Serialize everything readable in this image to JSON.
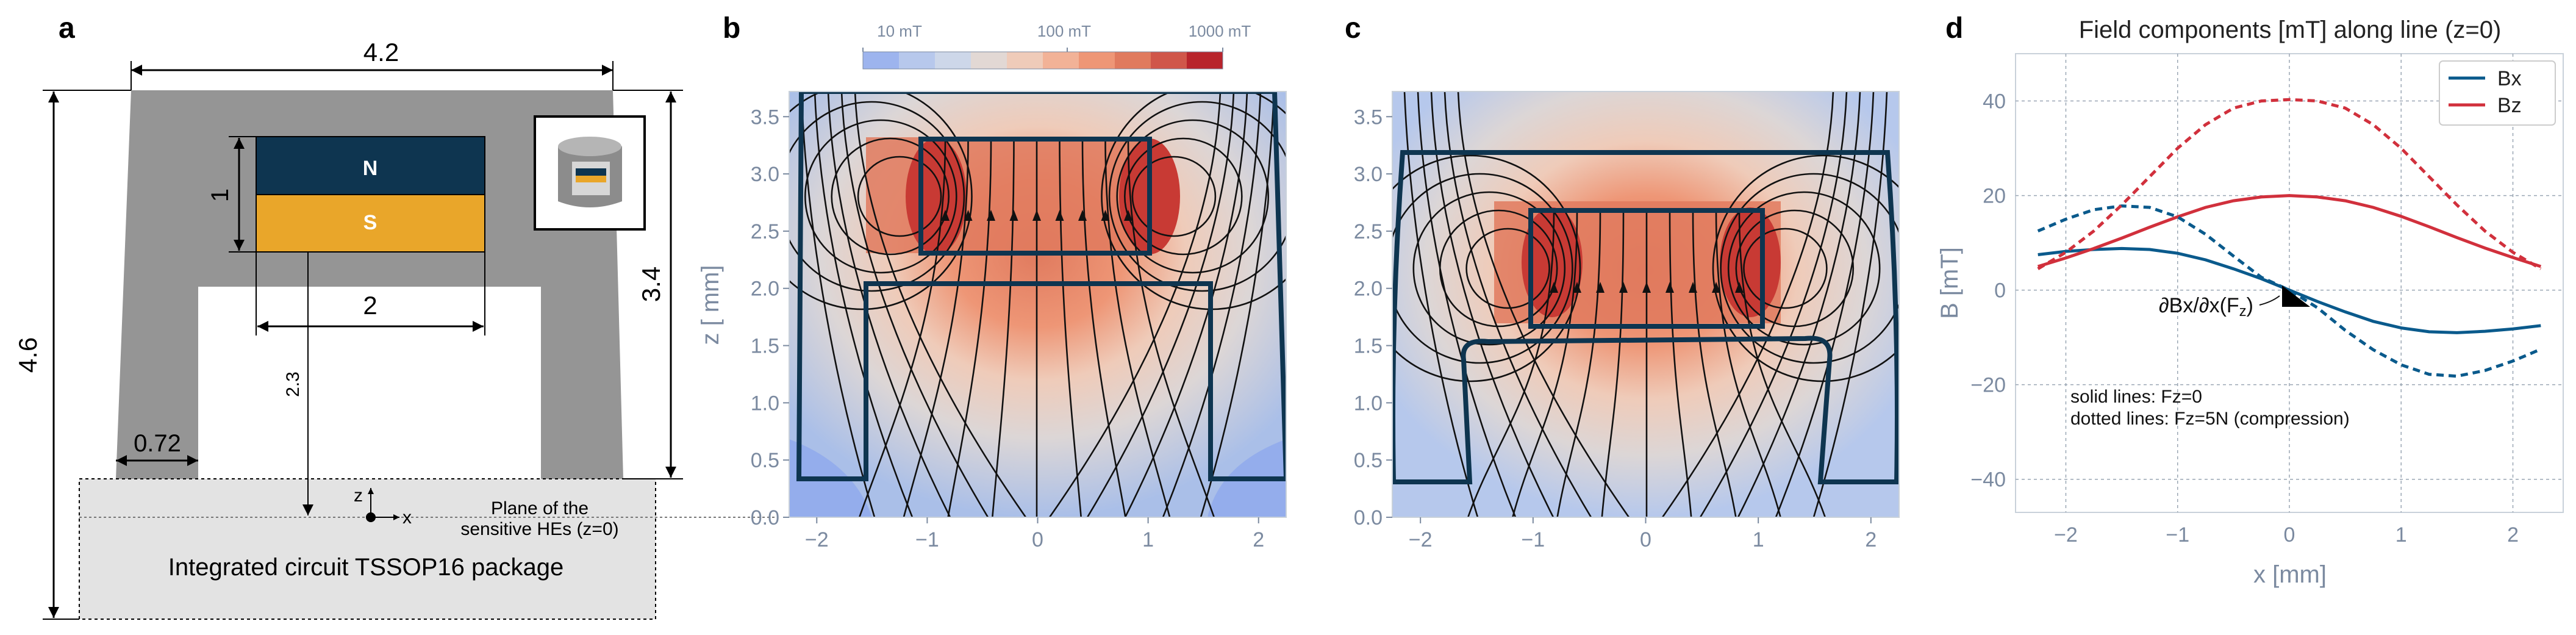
{
  "panels": {
    "a": "a",
    "b": "b",
    "c": "c",
    "d": "d"
  },
  "schematic": {
    "dim_width": "4.2",
    "dim_height": "4.6",
    "dim_right": "3.4",
    "dim_magnet_h": "1",
    "dim_magnet_w": "2",
    "dim_gap": "2.3",
    "dim_leg": "0.72",
    "magnet_n": "N",
    "magnet_s": "S",
    "axis_z": "z",
    "axis_x": "x",
    "plane_line1": "Plane of the",
    "plane_line2": "sensitive HEs (z=0)",
    "package_label": "Integrated circuit TSSOP16 package",
    "colors": {
      "body": "#959595",
      "north": "#0e3550",
      "south": "#e9a62a",
      "package": "#e3e3e3"
    }
  },
  "colorbar": {
    "ticks": [
      "10 mT",
      "100 mT",
      "1000 mT"
    ],
    "colors": [
      "#9db4ee",
      "#b7c8ec",
      "#cdd7e9",
      "#e2d8d4",
      "#efcbb9",
      "#f2b297",
      "#ee9676",
      "#e07a5e",
      "#d0564a",
      "#b8242c"
    ]
  },
  "field_maps": {
    "ylabel": "z [ mm]",
    "x_ticks": [
      "−2",
      "−1",
      "0",
      "1",
      "2"
    ],
    "y_ticks": [
      "0.0",
      "0.5",
      "1.0",
      "1.5",
      "2.0",
      "2.5",
      "3.0",
      "3.5"
    ]
  },
  "chart_data": {
    "type": "line",
    "title": "Field components [mT] along line (z=0)",
    "xlabel": "x [mm]",
    "ylabel": "B [mT]",
    "xlim": [
      -2.45,
      2.45
    ],
    "ylim": [
      -47,
      50
    ],
    "x_ticks": [
      "−2",
      "−1",
      "0",
      "1",
      "2"
    ],
    "y_ticks": [
      "−40",
      "−20",
      "0",
      "20",
      "40"
    ],
    "grid": true,
    "legend_position": "top-right",
    "legend": [
      "Bx",
      "Bz"
    ],
    "colors": {
      "Bx": "#0a5a8c",
      "Bz": "#d1303c"
    },
    "x": [
      -2.25,
      -2.0,
      -1.75,
      -1.5,
      -1.25,
      -1.0,
      -0.75,
      -0.5,
      -0.25,
      0.0,
      0.25,
      0.5,
      0.75,
      1.0,
      1.25,
      1.5,
      1.75,
      2.0,
      2.25
    ],
    "series": [
      {
        "name": "Bx",
        "style": "solid",
        "values": [
          7.5,
          8.2,
          8.6,
          8.8,
          8.6,
          7.8,
          6.4,
          4.5,
          2.4,
          0.0,
          -2.4,
          -4.6,
          -6.6,
          -8.0,
          -8.8,
          -9.0,
          -8.7,
          -8.2,
          -7.5
        ]
      },
      {
        "name": "Bz",
        "style": "solid",
        "values": [
          5.0,
          6.8,
          8.8,
          11.0,
          13.3,
          15.5,
          17.5,
          18.9,
          19.7,
          20.0,
          19.7,
          18.9,
          17.5,
          15.6,
          13.4,
          11.1,
          8.9,
          6.9,
          5.0
        ]
      },
      {
        "name": "Bx",
        "style": "dotted",
        "values": [
          12.5,
          15.0,
          17.0,
          17.8,
          17.5,
          15.5,
          11.8,
          7.2,
          2.7,
          0.0,
          -3.7,
          -8.5,
          -12.6,
          -15.8,
          -17.8,
          -18.2,
          -17.0,
          -15.0,
          -12.5
        ]
      },
      {
        "name": "Bz",
        "style": "dotted",
        "values": [
          4.5,
          8.0,
          12.5,
          18.0,
          24.0,
          30.0,
          35.0,
          38.5,
          40.0,
          40.3,
          40.0,
          38.5,
          35.0,
          30.0,
          24.0,
          18.0,
          12.5,
          8.0,
          4.5
        ]
      }
    ],
    "annotations": {
      "derivative": "∂Bx/∂x(F",
      "derivative_sub": "z",
      "derivative_end": ")",
      "note1": "solid lines: Fz=0",
      "note2": "dotted lines: Fz=5N (compression)"
    }
  }
}
